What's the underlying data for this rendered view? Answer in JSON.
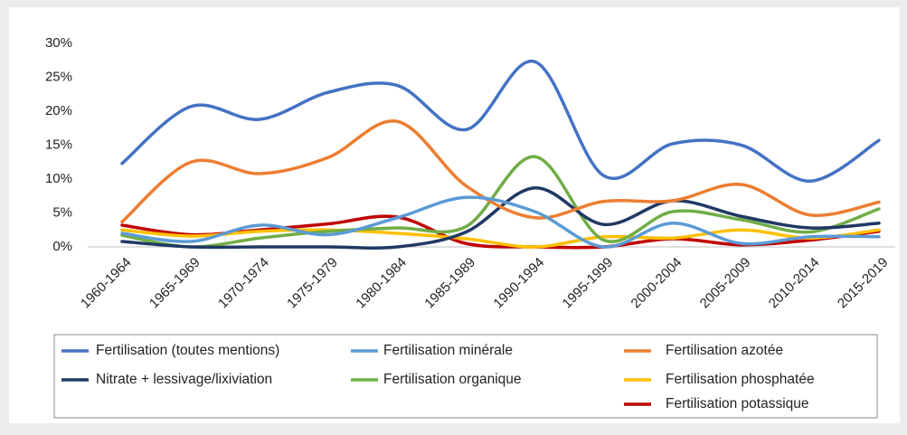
{
  "chart_data": {
    "type": "line",
    "categories": [
      "1960-1964",
      "1965-1969",
      "1970-1974",
      "1975-1979",
      "1980-1984",
      "1985-1989",
      "1990-1994",
      "1995-1999",
      "2000-2004",
      "2005-2009",
      "2010-2014",
      "2015-2019"
    ],
    "series": [
      {
        "name": "Fertilisation (toutes mentions)",
        "color": "#4472c4",
        "values": [
          12.3,
          20.7,
          18.8,
          22.8,
          23.8,
          17.3,
          27.3,
          10.5,
          15.2,
          15.0,
          9.7,
          15.7
        ]
      },
      {
        "name": "Fertilisation minérale",
        "color": "#5b9bd5",
        "values": [
          2.0,
          0.8,
          3.2,
          1.8,
          4.3,
          7.3,
          5.2,
          0.0,
          3.5,
          0.5,
          1.5,
          1.5
        ]
      },
      {
        "name": "Fertilisation azotée",
        "color": "#ed7d31",
        "values": [
          3.7,
          12.5,
          10.8,
          13.2,
          18.5,
          9.0,
          4.3,
          6.7,
          6.8,
          9.2,
          4.7,
          6.6
        ]
      },
      {
        "name": "Nitrate + lessivage/lixiviation",
        "color": "#203864",
        "values": [
          0.8,
          0.0,
          0.0,
          0.0,
          0.0,
          2.2,
          8.7,
          3.3,
          6.8,
          4.5,
          2.8,
          3.5
        ]
      },
      {
        "name": "Fertilisation organique",
        "color": "#70ad47",
        "values": [
          1.7,
          0.0,
          1.3,
          2.3,
          2.8,
          3.0,
          13.3,
          1.0,
          5.2,
          4.0,
          2.2,
          5.6
        ]
      },
      {
        "name": "Fertilisation phosphatée",
        "color": "#ffc000",
        "values": [
          2.5,
          1.6,
          2.3,
          2.5,
          2.0,
          1.2,
          0.0,
          1.5,
          1.3,
          2.5,
          1.3,
          2.5
        ]
      },
      {
        "name": "Fertilisation potassique",
        "color": "#c00000",
        "values": [
          3.2,
          1.8,
          2.5,
          3.4,
          4.4,
          0.5,
          0.0,
          0.0,
          1.2,
          0.3,
          1.0,
          2.3
        ]
      }
    ],
    "ylim": [
      0,
      30
    ],
    "yticks": [
      {
        "value": 0,
        "label": "0%"
      },
      {
        "value": 5,
        "label": "5%"
      },
      {
        "value": 10,
        "label": "10%"
      },
      {
        "value": 15,
        "label": "15%"
      },
      {
        "value": 20,
        "label": "20%"
      },
      {
        "value": 25,
        "label": "25%"
      },
      {
        "value": 30,
        "label": "30%"
      }
    ],
    "grid": false,
    "legend": "bottom"
  }
}
